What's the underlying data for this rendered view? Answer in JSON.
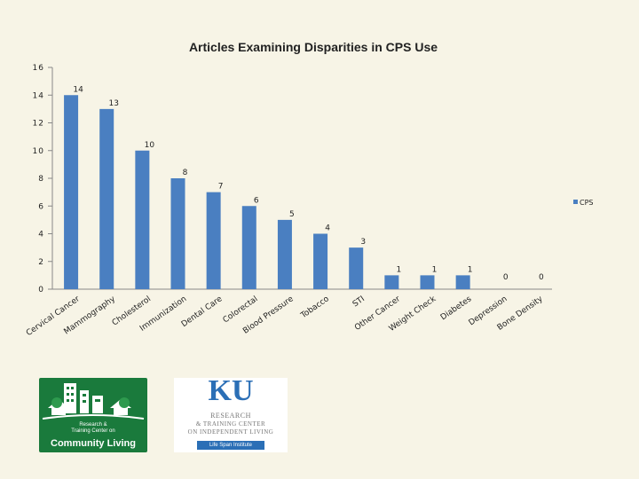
{
  "chart_data": {
    "type": "bar",
    "title": "Articles Examining Disparities in CPS Use",
    "categories": [
      "Cervical Cancer",
      "Mammography",
      "Cholesterol",
      "Immunization",
      "Dental Care",
      "Colorectal",
      "Blood Pressure",
      "Tobacco",
      "STI",
      "Other Cancer",
      "Weight Check",
      "Diabetes",
      "Depression",
      "Bone Density"
    ],
    "series": [
      {
        "name": "CPS",
        "values": [
          14,
          13,
          10,
          8,
          7,
          6,
          5,
          4,
          3,
          1,
          1,
          1,
          0,
          0
        ],
        "color": "#4a7fc1"
      }
    ],
    "data_labels": [
      "14",
      "13",
      "10",
      "8",
      "7",
      "6",
      "5",
      "4",
      "3",
      "1",
      "1",
      "1",
      "0",
      "0"
    ],
    "y_ticks": [
      "0",
      "2",
      "4",
      "6",
      "8",
      "10",
      "12",
      "14",
      "16"
    ],
    "ylim": [
      0,
      16
    ],
    "xlabel": "",
    "ylabel": "",
    "grid": false,
    "legend": {
      "position": "right",
      "entries": [
        "CPS"
      ]
    }
  },
  "logos": {
    "left": {
      "line1": "Research &",
      "line2": "Training Center on",
      "line3": "Community Living",
      "color": "#1a7a3c"
    },
    "right": {
      "mark": "KU",
      "line1": "RESEARCH",
      "line2": "& TRAINING CENTER",
      "line3": "ON INDEPENDENT LIVING",
      "band": "Life Span Institute",
      "color": "#2b6fb6"
    }
  }
}
